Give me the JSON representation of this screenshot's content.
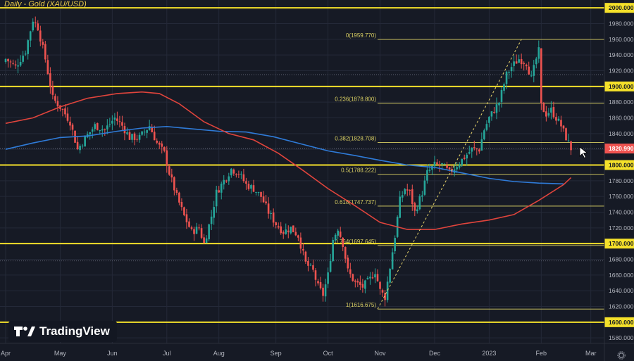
{
  "header": {
    "title": "Daily - Gold (XAU/USD)"
  },
  "brand": {
    "logo_text": "TradingView"
  },
  "colors": {
    "background": "#161a25",
    "grid": "#242938",
    "up": "#26a69a",
    "down": "#ef5350",
    "sma_slow": "#2f7bd8",
    "sma_fast": "#e0443c",
    "level": "#f5e12a",
    "fib": "#d9cf63",
    "price_tag": "#ef5350",
    "axis_text": "#b2b5be"
  },
  "chart_data": {
    "type": "candlestick",
    "instrument": "Gold (XAU/USD)",
    "timeframe": "Daily",
    "y_axis": {
      "position": "right",
      "ylim": [
        1573,
        2010
      ],
      "ticks": [
        "1580.000",
        "1600.000",
        "1620.000",
        "1640.000",
        "1660.000",
        "1680.000",
        "1700.000",
        "1720.000",
        "1740.000",
        "1760.000",
        "1780.000",
        "1800.000",
        "1820.000",
        "1840.000",
        "1860.000",
        "1880.000",
        "1900.000",
        "1920.000",
        "1940.000",
        "1960.000",
        "1980.000",
        "2000.000"
      ]
    },
    "x_axis": {
      "labels": [
        {
          "label": "Apr",
          "bar": 0
        },
        {
          "label": "May",
          "bar": 22
        },
        {
          "label": "Jun",
          "bar": 43
        },
        {
          "label": "Jul",
          "bar": 65
        },
        {
          "label": "Aug",
          "bar": 86
        },
        {
          "label": "Sep",
          "bar": 109
        },
        {
          "label": "Oct",
          "bar": 130
        },
        {
          "label": "Nov",
          "bar": 151
        },
        {
          "label": "Dec",
          "bar": 173
        },
        {
          "label": "2023",
          "bar": 195
        },
        {
          "label": "Feb",
          "bar": 216
        },
        {
          "label": "Mar",
          "bar": 236
        }
      ],
      "bars_total": 240
    },
    "close_path": [
      [
        0,
        1935
      ],
      [
        4,
        1925
      ],
      [
        8,
        1945
      ],
      [
        11,
        1985
      ],
      [
        13,
        1975
      ],
      [
        16,
        1935
      ],
      [
        19,
        1885
      ],
      [
        23,
        1870
      ],
      [
        26,
        1855
      ],
      [
        29,
        1820
      ],
      [
        33,
        1838
      ],
      [
        36,
        1850
      ],
      [
        40,
        1845
      ],
      [
        44,
        1860
      ],
      [
        47,
        1850
      ],
      [
        50,
        1835
      ],
      [
        54,
        1835
      ],
      [
        58,
        1850
      ],
      [
        61,
        1828
      ],
      [
        64,
        1815
      ],
      [
        66,
        1790
      ],
      [
        69,
        1760
      ],
      [
        72,
        1735
      ],
      [
        75,
        1715
      ],
      [
        78,
        1720
      ],
      [
        80,
        1700
      ],
      [
        83,
        1735
      ],
      [
        85,
        1765
      ],
      [
        88,
        1780
      ],
      [
        91,
        1795
      ],
      [
        94,
        1790
      ],
      [
        97,
        1775
      ],
      [
        100,
        1770
      ],
      [
        103,
        1760
      ],
      [
        106,
        1740
      ],
      [
        109,
        1725
      ],
      [
        112,
        1715
      ],
      [
        115,
        1720
      ],
      [
        118,
        1710
      ],
      [
        121,
        1675
      ],
      [
        124,
        1665
      ],
      [
        126,
        1645
      ],
      [
        128,
        1635
      ],
      [
        130,
        1660
      ],
      [
        132,
        1705
      ],
      [
        134,
        1720
      ],
      [
        136,
        1700
      ],
      [
        138,
        1665
      ],
      [
        141,
        1650
      ],
      [
        144,
        1645
      ],
      [
        147,
        1655
      ],
      [
        149,
        1665
      ],
      [
        151,
        1640
      ],
      [
        153,
        1632
      ],
      [
        155,
        1670
      ],
      [
        157,
        1710
      ],
      [
        159,
        1755
      ],
      [
        161,
        1770
      ],
      [
        163,
        1765
      ],
      [
        165,
        1740
      ],
      [
        168,
        1765
      ],
      [
        170,
        1790
      ],
      [
        173,
        1800
      ],
      [
        176,
        1800
      ],
      [
        179,
        1790
      ],
      [
        182,
        1800
      ],
      [
        185,
        1810
      ],
      [
        188,
        1820
      ],
      [
        191,
        1820
      ],
      [
        193,
        1845
      ],
      [
        195,
        1860
      ],
      [
        197,
        1870
      ],
      [
        199,
        1880
      ],
      [
        202,
        1915
      ],
      [
        204,
        1925
      ],
      [
        207,
        1935
      ],
      [
        210,
        1930
      ],
      [
        212,
        1910
      ],
      [
        214,
        1935
      ],
      [
        215,
        1945
      ],
      [
        216,
        1875
      ],
      [
        218,
        1865
      ],
      [
        220,
        1870
      ],
      [
        222,
        1860
      ],
      [
        224,
        1850
      ],
      [
        226,
        1835
      ],
      [
        228,
        1821
      ]
    ],
    "series": [
      {
        "name": "SMA (blue)",
        "points": [
          [
            0,
            1820
          ],
          [
            11,
            1828
          ],
          [
            22,
            1835
          ],
          [
            33,
            1837
          ],
          [
            45,
            1843
          ],
          [
            55,
            1847
          ],
          [
            65,
            1849
          ],
          [
            75,
            1846
          ],
          [
            86,
            1843
          ],
          [
            97,
            1842
          ],
          [
            108,
            1836
          ],
          [
            119,
            1827
          ],
          [
            130,
            1818
          ],
          [
            141,
            1812
          ],
          [
            151,
            1806
          ],
          [
            162,
            1800
          ],
          [
            173,
            1797
          ],
          [
            184,
            1790
          ],
          [
            195,
            1783
          ],
          [
            205,
            1779
          ],
          [
            215,
            1777
          ],
          [
            225,
            1776
          ]
        ]
      },
      {
        "name": "SMA (red)",
        "points": [
          [
            0,
            1853
          ],
          [
            11,
            1860
          ],
          [
            22,
            1874
          ],
          [
            33,
            1885
          ],
          [
            45,
            1891
          ],
          [
            55,
            1893
          ],
          [
            62,
            1891
          ],
          [
            70,
            1878
          ],
          [
            80,
            1855
          ],
          [
            90,
            1840
          ],
          [
            100,
            1832
          ],
          [
            110,
            1815
          ],
          [
            120,
            1793
          ],
          [
            130,
            1770
          ],
          [
            141,
            1748
          ],
          [
            151,
            1727
          ],
          [
            162,
            1718
          ],
          [
            173,
            1718
          ],
          [
            184,
            1725
          ],
          [
            195,
            1730
          ],
          [
            205,
            1737
          ],
          [
            215,
            1755
          ],
          [
            225,
            1775
          ],
          [
            228,
            1784
          ]
        ]
      }
    ],
    "horizontal_levels": [
      {
        "value": 2000.0,
        "label": "2000.000"
      },
      {
        "value": 1900.0,
        "label": "1900.000"
      },
      {
        "value": 1800.0,
        "label": "1800.000"
      },
      {
        "value": 1700.0,
        "label": "1700.000"
      },
      {
        "value": 1600.0,
        "label": "1600.000"
      }
    ],
    "fibonacci": [
      {
        "ratio": "0",
        "value": 1959.77,
        "label": "0(1959.770)"
      },
      {
        "ratio": "0.236",
        "value": 1878.8,
        "label": "0.236(1878.800)"
      },
      {
        "ratio": "0.382",
        "value": 1828.708,
        "label": "0.382(1828.708)"
      },
      {
        "ratio": "0.5",
        "value": 1788.222,
        "label": "0.5(1788.222)"
      },
      {
        "ratio": "0.618",
        "value": 1747.737,
        "label": "0.618(1747.737)"
      },
      {
        "ratio": "0.764",
        "value": 1697.645,
        "label": "0.764(1697.645)"
      },
      {
        "ratio": "1",
        "value": 1616.675,
        "label": "1(1616.675)"
      }
    ],
    "fib_start_bar": 150,
    "fib_end_bar": 235,
    "trendline": {
      "from": [
        150,
        1616.675
      ],
      "to": [
        208,
        1959.77
      ]
    },
    "minor_lines": [
      1915,
      1820.99,
      1678
    ],
    "last_price": {
      "value": 1820.99,
      "label": "1820.990"
    }
  }
}
